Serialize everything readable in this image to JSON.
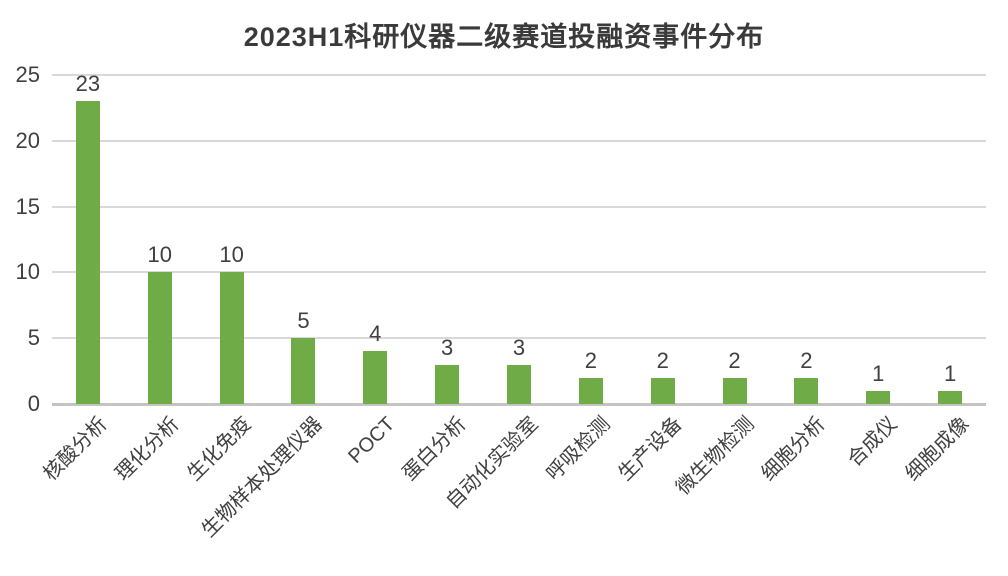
{
  "chart_data": {
    "type": "bar",
    "title": "2023H1科研仪器二级赛道投融资事件分布",
    "categories": [
      "核酸分析",
      "理化分析",
      "生化免疫",
      "生物样本处理仪器",
      "POCT",
      "蛋白分析",
      "自动化实验室",
      "呼吸检测",
      "生产设备",
      "微生物检测",
      "细胞分析",
      "合成仪",
      "细胞成像"
    ],
    "values": [
      23,
      10,
      10,
      5,
      4,
      3,
      3,
      2,
      2,
      2,
      2,
      1,
      1
    ],
    "xlabel": "",
    "ylabel": "",
    "ylim": [
      0,
      25
    ],
    "yticks": [
      0,
      5,
      10,
      15,
      20,
      25
    ],
    "grid": true,
    "legend": false,
    "data_labels": true,
    "x_label_rotation_deg": 45,
    "bar_color": "#6FAC47",
    "gridline_color": "#D9D9D9",
    "axis_line_color": "#C4C4C4",
    "title_color": "#3A3A3A",
    "label_color": "#404040"
  }
}
